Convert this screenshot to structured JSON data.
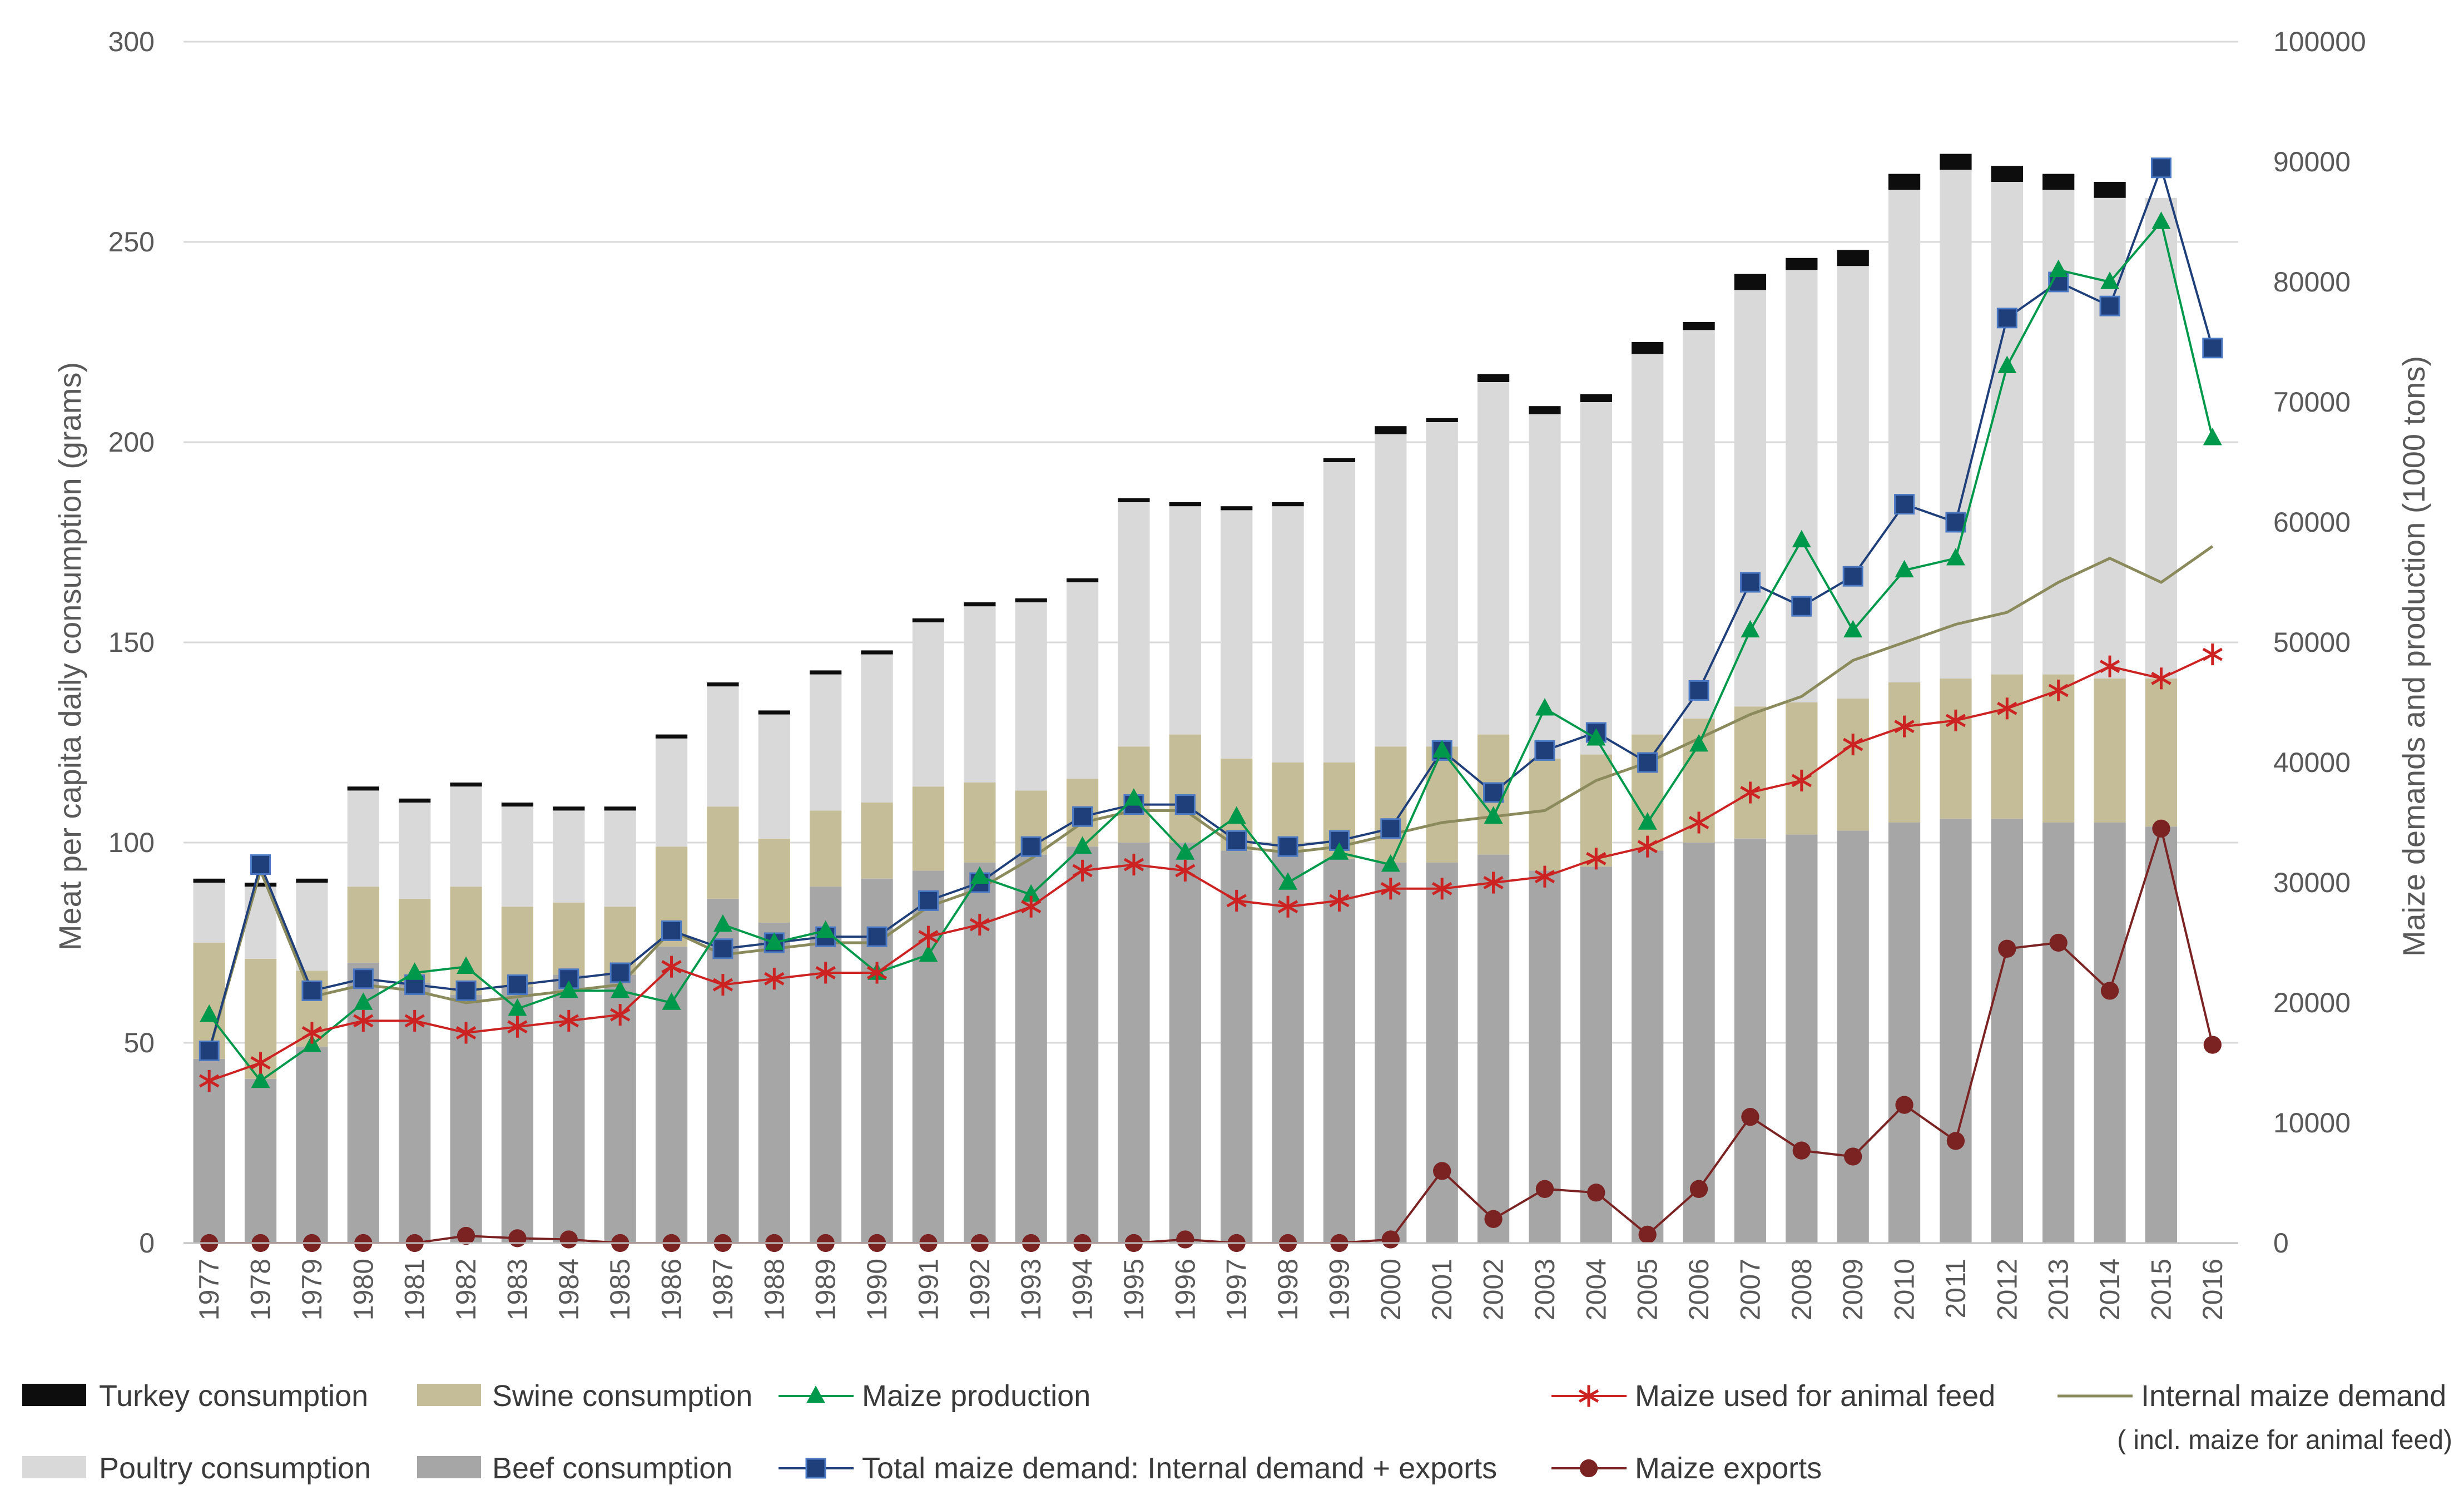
{
  "chart_data": {
    "type": "bar",
    "title": "",
    "ylabel_left": "Meat per capita daily consumption (grams)",
    "ylabel_right": "Maize demands and production (1000 tons)",
    "ylim_left": [
      0,
      300
    ],
    "ylim_right": [
      0,
      100000
    ],
    "yticks_left": [
      "0",
      "50",
      "100",
      "150",
      "200",
      "250",
      "300"
    ],
    "yticks_right": [
      "0",
      "10000",
      "20000",
      "30000",
      "40000",
      "50000",
      "60000",
      "70000",
      "80000",
      "90000",
      "100000"
    ],
    "categories": [
      "1977",
      "1978",
      "1979",
      "1980",
      "1981",
      "1982",
      "1983",
      "1984",
      "1985",
      "1986",
      "1987",
      "1988",
      "1989",
      "1990",
      "1991",
      "1992",
      "1993",
      "1994",
      "1995",
      "1996",
      "1997",
      "1998",
      "1999",
      "2000",
      "2001",
      "2002",
      "2003",
      "2004",
      "2005",
      "2006",
      "2007",
      "2008",
      "2009",
      "2010",
      "2011",
      "2012",
      "2013",
      "2014",
      "2015",
      "2016"
    ],
    "bar_series": [
      {
        "name": "Beef consumption",
        "color": "#a6a6a6",
        "values": [
          46,
          41,
          49,
          70,
          65,
          62,
          64,
          67,
          67,
          74,
          86,
          80,
          89,
          91,
          93,
          95,
          97,
          99,
          100,
          100,
          98,
          98,
          96,
          95,
          95,
          97,
          93,
          94,
          98,
          100,
          101,
          102,
          103,
          105,
          106,
          106,
          105,
          105,
          104,
          null
        ]
      },
      {
        "name": "Swine consumption",
        "color": "#c4bd97",
        "values": [
          29,
          30,
          19,
          19,
          21,
          27,
          20,
          18,
          17,
          25,
          23,
          21,
          19,
          19,
          21,
          20,
          16,
          17,
          24,
          27,
          23,
          22,
          24,
          29,
          29,
          30,
          28,
          28,
          29,
          31,
          33,
          33,
          33,
          35,
          35,
          36,
          37,
          36,
          37,
          null
        ]
      },
      {
        "name": "Poultry consumption",
        "color": "#d9d9d9",
        "values": [
          15,
          18,
          22,
          24,
          24,
          25,
          25,
          23,
          24,
          27,
          30,
          31,
          34,
          37,
          41,
          44,
          47,
          49,
          61,
          57,
          62,
          64,
          75,
          78,
          81,
          88,
          86,
          88,
          95,
          97,
          104,
          108,
          108,
          123,
          127,
          123,
          121,
          120,
          120,
          null
        ]
      },
      {
        "name": "Turkey consumption",
        "color": "#0d0d0d",
        "values": [
          1,
          1,
          1,
          1,
          1,
          1,
          1,
          1,
          1,
          1,
          1,
          1,
          1,
          1,
          1,
          1,
          1,
          1,
          1,
          1,
          1,
          1,
          1,
          2,
          1,
          2,
          2,
          2,
          3,
          2,
          4,
          3,
          4,
          4,
          4,
          4,
          4,
          4,
          null,
          null
        ]
      }
    ],
    "line_series": [
      {
        "name": "Maize production",
        "color": "#00994c",
        "marker": "triangle",
        "values": [
          19000,
          13500,
          16500,
          20000,
          22500,
          23000,
          19500,
          21000,
          21000,
          20000,
          26500,
          25000,
          26000,
          22500,
          24000,
          30500,
          29000,
          33000,
          37000,
          32500,
          35500,
          30000,
          32500,
          31500,
          41000,
          35500,
          44500,
          42000,
          35000,
          41500,
          51000,
          58500,
          51000,
          56000,
          57000,
          73000,
          81000,
          80000,
          85000,
          67000
        ]
      },
      {
        "name": "Total maize demand: Internal demand + exports",
        "color": "#1f3f7a",
        "marker": "square",
        "values": [
          16000,
          31500,
          21000,
          22000,
          21500,
          21000,
          21500,
          22000,
          22500,
          26000,
          24500,
          25000,
          25500,
          25500,
          28500,
          30000,
          33000,
          35500,
          36500,
          36500,
          33500,
          33000,
          33500,
          34500,
          41000,
          37500,
          41000,
          42500,
          40000,
          46000,
          55000,
          53000,
          55500,
          61500,
          60000,
          77000,
          80000,
          78000,
          89500,
          74500
        ]
      },
      {
        "name": "Maize used for animal feed",
        "color": "#cc2222",
        "marker": "asterisk",
        "values": [
          13500,
          15000,
          17500,
          18500,
          18500,
          17500,
          18000,
          18500,
          19000,
          23000,
          21500,
          22000,
          22500,
          22500,
          25500,
          26500,
          28000,
          31000,
          31500,
          31000,
          28500,
          28000,
          28500,
          29500,
          29500,
          30000,
          30500,
          32000,
          33000,
          35000,
          37500,
          38500,
          41500,
          43000,
          43500,
          44500,
          46000,
          48000,
          47000,
          49000
        ]
      },
      {
        "name": "Internal maize demand",
        "name_note": "( incl. maize for animal feed)",
        "color": "#8a8a5c",
        "marker": "none",
        "values": [
          16000,
          31000,
          20500,
          21500,
          21000,
          20000,
          20500,
          21000,
          21500,
          26000,
          24000,
          24500,
          25000,
          25000,
          28000,
          29500,
          32000,
          35000,
          36000,
          36000,
          33000,
          32500,
          33000,
          34000,
          35000,
          35500,
          36000,
          38500,
          40000,
          42000,
          44000,
          45500,
          48500,
          50000,
          51500,
          52500,
          55000,
          57000,
          55000,
          58000
        ]
      },
      {
        "name": "Maize exports",
        "color": "#7b2222",
        "marker": "circle",
        "values": [
          0,
          0,
          0,
          0,
          0,
          600,
          400,
          300,
          0,
          0,
          0,
          0,
          0,
          0,
          0,
          0,
          0,
          0,
          0,
          300,
          0,
          0,
          0,
          300,
          6000,
          2000,
          4500,
          4200,
          700,
          4500,
          10500,
          7700,
          7200,
          11500,
          8500,
          24500,
          25000,
          21000,
          34500,
          16500
        ]
      }
    ],
    "legend": {
      "col1": [
        "Turkey consumption",
        "Poultry consumption"
      ],
      "col2": [
        "Swine consumption",
        "Beef consumption"
      ],
      "col3": [
        "Maize production",
        "Total maize demand: Internal demand + exports"
      ],
      "col4": [
        "Maize used for animal feed",
        "Maize exports"
      ],
      "col5": [
        "Internal maize demand",
        "( incl. maize for animal feed)"
      ]
    }
  }
}
